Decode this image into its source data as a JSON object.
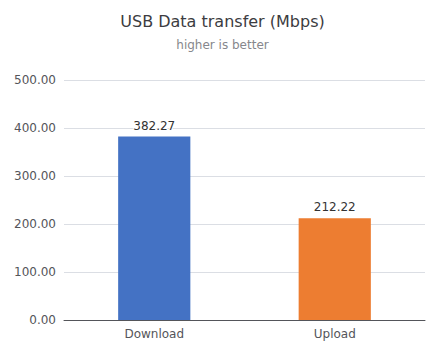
{
  "chart_data": {
    "type": "bar",
    "title": "USB Data transfer (Mbps)",
    "subtitle": "higher is better",
    "categories": [
      "Download",
      "Upload"
    ],
    "values": [
      382.27,
      212.22
    ],
    "colors": [
      "#4472c4",
      "#ed7d31"
    ],
    "ylim": [
      0,
      500
    ],
    "yticks": [
      {
        "value": 0,
        "label": "0.00"
      },
      {
        "value": 100,
        "label": "100.00"
      },
      {
        "value": 200,
        "label": "200.00"
      },
      {
        "value": 300,
        "label": "300.00"
      },
      {
        "value": 400,
        "label": "400.00"
      },
      {
        "value": 500,
        "label": "500.00"
      }
    ],
    "grid": true,
    "data_labels": true
  }
}
